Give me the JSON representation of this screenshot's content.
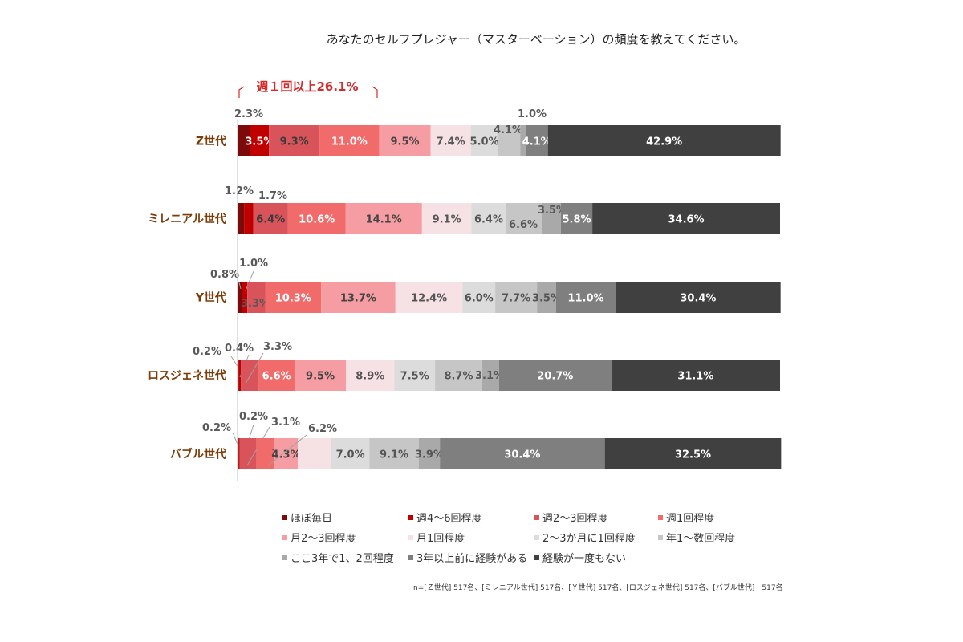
{
  "chart_data": {
    "type": "bar",
    "orientation": "horizontal",
    "stacked": "percent",
    "title": "あなたのセルフプレジャー（マスターベーション）の頻度を教えてください。",
    "categories": [
      "Z世代",
      "ミレニアル世代",
      "Y世代",
      "ロスジェネ世代",
      "バブル世代"
    ],
    "series": [
      {
        "name": "ほぼ毎日",
        "color": "#7d0a0a",
        "values": [
          2.3,
          1.2,
          0.8,
          0.2,
          0.2
        ]
      },
      {
        "name": "週4～6回程度",
        "color": "#c00000",
        "values": [
          3.5,
          1.7,
          1.0,
          0.4,
          0.2
        ]
      },
      {
        "name": "週2～3回程度",
        "color": "#d9535b",
        "values": [
          9.3,
          6.4,
          3.3,
          3.3,
          3.1
        ]
      },
      {
        "name": "週1回程度",
        "color": "#f26b6b",
        "values": [
          11.0,
          10.6,
          10.3,
          6.6,
          3.3
        ]
      },
      {
        "name": "月2～3回程度",
        "color": "#f59da2",
        "values": [
          9.5,
          14.1,
          13.7,
          9.5,
          4.3
        ]
      },
      {
        "name": "月1回程度",
        "color": "#f6e2e4",
        "values": [
          7.4,
          9.1,
          12.4,
          8.9,
          6.2
        ]
      },
      {
        "name": "2～3か月に1回程度",
        "color": "#dcdcdc",
        "values": [
          5.0,
          6.4,
          6.0,
          7.5,
          7.0
        ]
      },
      {
        "name": "年1～数回程度",
        "color": "#c6c6c6",
        "values": [
          4.1,
          6.6,
          7.7,
          8.7,
          9.1
        ]
      },
      {
        "name": "ここ3年で1、2回程度",
        "color": "#a9a9a9",
        "values": [
          1.0,
          3.5,
          3.5,
          3.1,
          3.9
        ]
      },
      {
        "name": "3年以上前に経験がある",
        "color": "#7f7f7f",
        "values": [
          4.1,
          5.8,
          11.0,
          20.7,
          30.4
        ]
      },
      {
        "name": "経験が一度もない",
        "color": "#404040",
        "values": [
          42.9,
          34.6,
          30.4,
          31.1,
          32.5
        ]
      }
    ],
    "xlim": [
      0,
      100
    ],
    "annotation": "週１回以上26.1%",
    "legend": "bottom",
    "grid": false
  },
  "note": "n=[Ｚ世代] 517名、[ミレニアル世代] 517名、[Ｙ世代] 517名、[ロスジェネ世代] 517名、[バブル世代]　517名"
}
